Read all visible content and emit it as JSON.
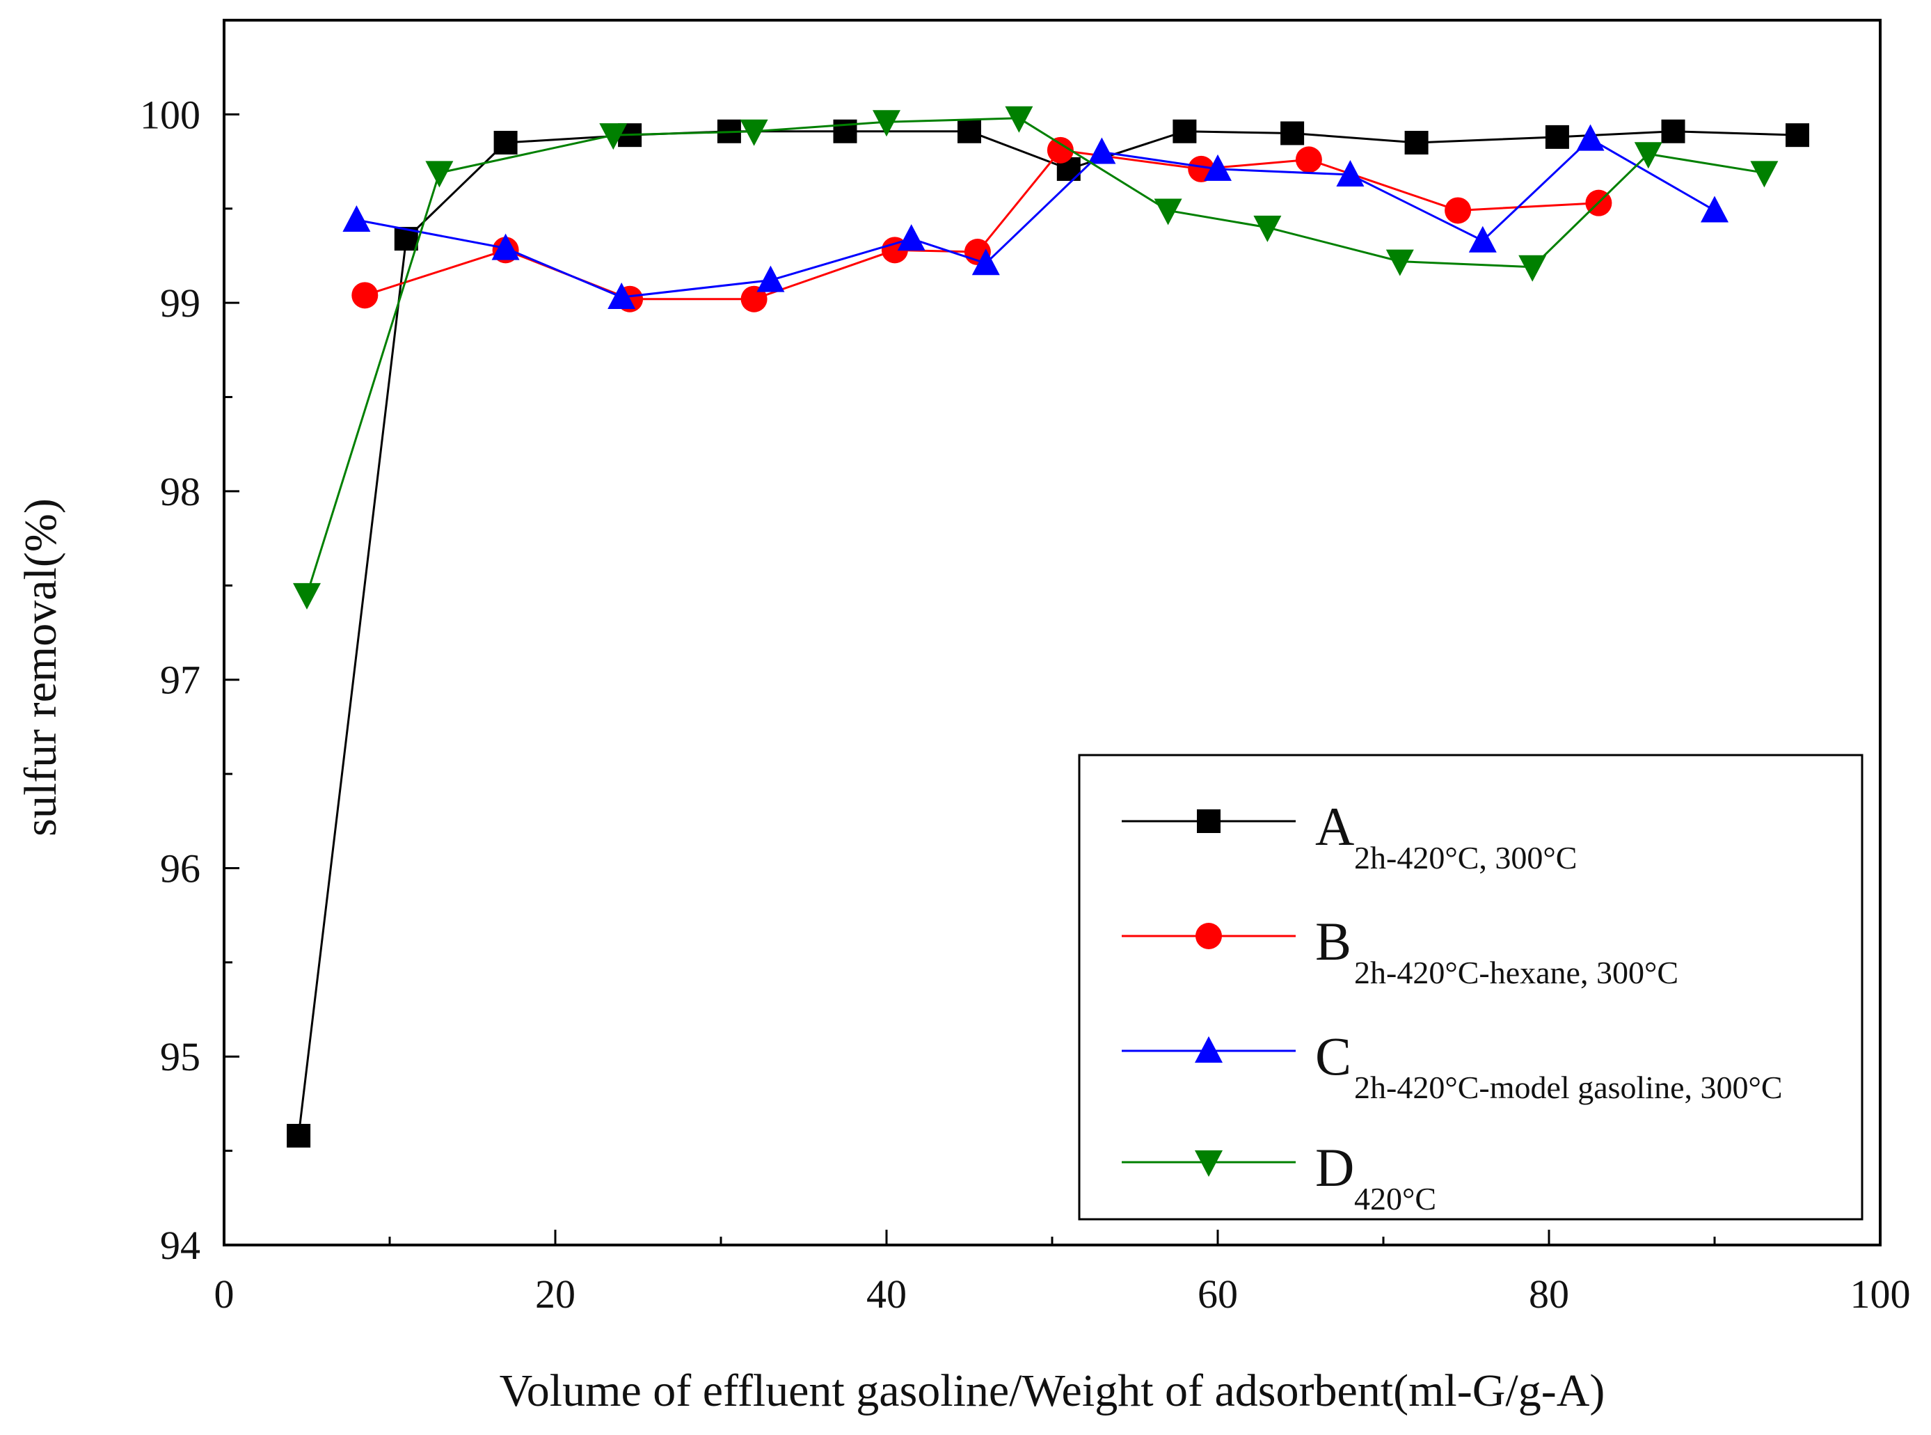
{
  "chart_data": {
    "type": "line",
    "title": "",
    "xlabel": "Volume of effluent gasoline/Weight of adsorbent(ml-G/g-A)",
    "ylabel": "sulfur removal(%)",
    "xlim": [
      0,
      100
    ],
    "ylim": [
      94,
      100.5
    ],
    "xticks": [
      0,
      20,
      40,
      60,
      80,
      100
    ],
    "xtick_labels": [
      "0",
      "20",
      "40",
      "60",
      "80",
      "100"
    ],
    "yticks": [
      94,
      95,
      96,
      97,
      98,
      99,
      100
    ],
    "ytick_labels": [
      "94",
      "95",
      "96",
      "97",
      "98",
      "99",
      "100"
    ],
    "legend_position": "bottom-right",
    "series": [
      {
        "name": "A",
        "subscript": "2h-420°C, 300°C",
        "color": "#000000",
        "marker": "square",
        "x": [
          4.5,
          11,
          17,
          24.5,
          30.5,
          37.5,
          45,
          51,
          58,
          64.5,
          72,
          80.5,
          87.5,
          95
        ],
        "y": [
          94.58,
          99.34,
          99.85,
          99.89,
          99.91,
          99.91,
          99.91,
          99.71,
          99.91,
          99.9,
          99.85,
          99.88,
          99.91,
          99.89
        ]
      },
      {
        "name": "B",
        "subscript": "2h-420°C-hexane, 300°C",
        "color": "#ff0000",
        "marker": "circle",
        "x": [
          8.5,
          17,
          24.5,
          32,
          40.5,
          45.5,
          50.5,
          59,
          65.5,
          74.5,
          83
        ],
        "y": [
          99.04,
          99.28,
          99.02,
          99.02,
          99.28,
          99.27,
          99.81,
          99.71,
          99.76,
          99.49,
          99.53
        ]
      },
      {
        "name": "C",
        "subscript": "2h-420°C-model gasoline, 300°C",
        "color": "#0000ff",
        "marker": "triangle-up",
        "x": [
          8,
          17,
          24,
          33,
          41.5,
          46,
          53,
          60,
          68,
          76,
          82.5,
          90
        ],
        "y": [
          99.44,
          99.29,
          99.03,
          99.12,
          99.34,
          99.21,
          99.8,
          99.71,
          99.68,
          99.33,
          99.87,
          99.49
        ]
      },
      {
        "name": "D",
        "subscript": "420°C",
        "color": "#008000",
        "marker": "triangle-down",
        "x": [
          5,
          13,
          23.5,
          32,
          40,
          48,
          57,
          63,
          71,
          79,
          86,
          93
        ],
        "y": [
          97.45,
          99.69,
          99.89,
          99.91,
          99.96,
          99.98,
          99.49,
          99.4,
          99.22,
          99.19,
          99.79,
          99.69
        ]
      }
    ]
  }
}
